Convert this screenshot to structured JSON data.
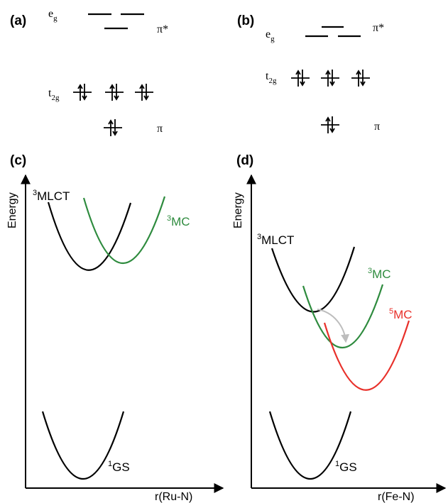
{
  "panel_a": {
    "label": "(a)",
    "eg_main": "e",
    "eg_sub": "g",
    "t2g_main": "t",
    "t2g_sub": "2g",
    "pi_star": "π*",
    "pi": "π"
  },
  "panel_b": {
    "label": "(b)",
    "eg_main": "e",
    "eg_sub": "g",
    "t2g_main": "t",
    "t2g_sub": "2g",
    "pi_star": "π*",
    "pi": "π"
  },
  "panel_c": {
    "label": "(c)",
    "y_axis": "Energy",
    "x_axis": "r(Ru-N)",
    "curves": [
      {
        "sup": "3",
        "name": "MLCT",
        "color": "#000000"
      },
      {
        "sup": "3",
        "name": "MC",
        "color": "#2e8b3e"
      },
      {
        "sup": "1",
        "name": "GS",
        "color": "#000000"
      }
    ]
  },
  "panel_d": {
    "label": "(d)",
    "y_axis": "Energy",
    "x_axis": "r(Fe-N)",
    "curves": [
      {
        "sup": "3",
        "name": "MLCT",
        "color": "#000000"
      },
      {
        "sup": "3",
        "name": "MC",
        "color": "#2e8b3e"
      },
      {
        "sup": "5",
        "name": "MC",
        "color": "#e8302a"
      },
      {
        "sup": "1",
        "name": "GS",
        "color": "#000000"
      }
    ],
    "arrow_color": "#bdbdbd"
  }
}
